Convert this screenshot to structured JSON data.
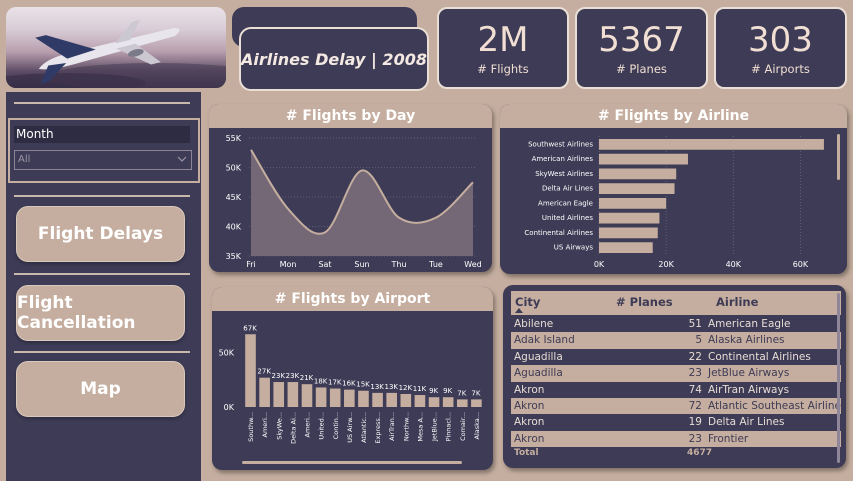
{
  "header": {
    "title": "Airlines Delay | 2008"
  },
  "kpis": [
    {
      "value": "2M",
      "label": "# Flights"
    },
    {
      "value": "5367",
      "label": "# Planes"
    },
    {
      "value": "303",
      "label": "# Airports"
    }
  ],
  "filter": {
    "label": "Month",
    "selected": "All"
  },
  "nav": {
    "delays": "Flight Delays",
    "cancellation": "Flight Cancellation",
    "map": "Map"
  },
  "colors": {
    "accent": "#c5ae9f",
    "panel": "#3d3b55",
    "text": "#ffffff"
  },
  "chart_data": [
    {
      "type": "area",
      "title": "# Flights by Day",
      "categories": [
        "Fri",
        "Mon",
        "Sat",
        "Sun",
        "Thu",
        "Tue",
        "Wed"
      ],
      "values": [
        53000,
        43000,
        39000,
        49500,
        41500,
        41500,
        47500
      ],
      "ylim": [
        35000,
        55000
      ],
      "yticks": [
        "35K",
        "40K",
        "45K",
        "50K",
        "55K"
      ],
      "grid": true
    },
    {
      "type": "bar",
      "orientation": "horizontal",
      "title": "# Flights by Airline",
      "categories": [
        "Southwest Airlines",
        "American Airlines",
        "SkyWest Airlines",
        "Delta Air Lines",
        "American Eagle",
        "United Airlines",
        "Continental Airlines",
        "US Airways"
      ],
      "values": [
        67000,
        26500,
        23000,
        22500,
        20000,
        18000,
        17500,
        16000
      ],
      "xlim": [
        0,
        70000
      ],
      "xticks": [
        "0K",
        "20K",
        "40K",
        "60K"
      ],
      "grid": true
    },
    {
      "type": "bar",
      "title": "# Flights by Airport",
      "categories": [
        "Southw...",
        "Ameri...",
        "SkyWe...",
        "Delta Ai...",
        "Ameri...",
        "United...",
        "Contin...",
        "US Airw...",
        "Atlantic...",
        "Express...",
        "AirTran...",
        "Northw...",
        "Mesa A...",
        "JetBlue...",
        "Pinnacl...",
        "Comair...",
        "Alaska..."
      ],
      "values": [
        67000,
        27000,
        23000,
        23000,
        21000,
        18000,
        17000,
        16000,
        15000,
        13000,
        13000,
        12000,
        11000,
        9000,
        9000,
        7000,
        7000
      ],
      "labels": [
        "67K",
        "27K",
        "23K",
        "23K",
        "21K",
        "18K",
        "17K",
        "16K",
        "15K",
        "13K",
        "13K",
        "12K",
        "11K",
        "9K",
        "9K",
        "7K",
        "7K"
      ],
      "ylim": [
        0,
        70000
      ],
      "yticks": [
        "0K",
        "50K"
      ]
    }
  ],
  "table": {
    "columns": [
      "City",
      "# Planes",
      "Airline"
    ],
    "rows": [
      {
        "city": "Abilene",
        "planes": "51",
        "airline": "American Eagle"
      },
      {
        "city": "Adak Island",
        "planes": "5",
        "airline": "Alaska Airlines"
      },
      {
        "city": "Aguadilla",
        "planes": "22",
        "airline": "Continental Airlines"
      },
      {
        "city": "Aguadilla",
        "planes": "23",
        "airline": "JetBlue Airways"
      },
      {
        "city": "Akron",
        "planes": "74",
        "airline": "AirTran Airways"
      },
      {
        "city": "Akron",
        "planes": "72",
        "airline": "Atlantic Southeast Airlines"
      },
      {
        "city": "Akron",
        "planes": "19",
        "airline": "Delta Air Lines"
      },
      {
        "city": "Akron",
        "planes": "23",
        "airline": "Frontier"
      }
    ],
    "total_label": "Total",
    "total_value": "4677"
  }
}
